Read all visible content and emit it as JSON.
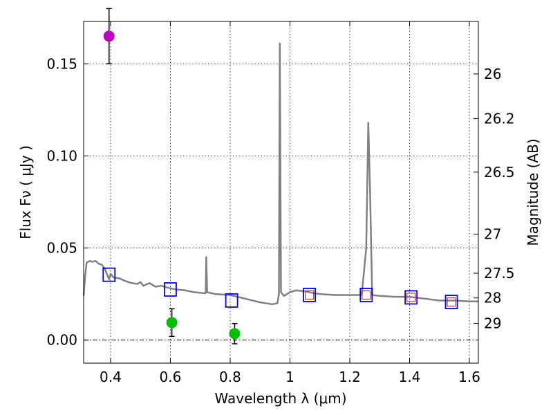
{
  "chart_data": {
    "type": "scatter",
    "xlabel": "Wavelength  λ (μm)",
    "ylabel_left": "Flux  Fν  ( μJy )",
    "ylabel_right": "Magnitude (AB)",
    "xlim": [
      0.31,
      1.63
    ],
    "ylim": [
      -0.0125,
      0.173
    ],
    "x_ticks": [
      {
        "value": 0.4,
        "label": "0.4"
      },
      {
        "value": 0.6,
        "label": "0.6"
      },
      {
        "value": 0.8,
        "label": "0.8"
      },
      {
        "value": 1.0,
        "label": "1"
      },
      {
        "value": 1.2,
        "label": "1.2"
      },
      {
        "value": 1.4,
        "label": "1.4"
      },
      {
        "value": 1.6,
        "label": "1.6"
      }
    ],
    "y_ticks": [
      {
        "value": 0.0,
        "label": "0.00"
      },
      {
        "value": 0.05,
        "label": "0.05"
      },
      {
        "value": 0.1,
        "label": "0.10"
      },
      {
        "value": 0.15,
        "label": "0.15"
      }
    ],
    "right_ticks": [
      {
        "flux": 0.1445,
        "label": "26"
      },
      {
        "flux": 0.1202,
        "label": "26.2"
      },
      {
        "flux": 0.0912,
        "label": "26.5"
      },
      {
        "flux": 0.0575,
        "label": "27"
      },
      {
        "flux": 0.0363,
        "label": "27.5"
      },
      {
        "flux": 0.0229,
        "label": "28"
      },
      {
        "flux": 0.0091,
        "label": "29"
      }
    ],
    "grid": true,
    "zero_line": true,
    "series": [
      {
        "name": "model-spectrum",
        "kind": "line",
        "color": "#808080",
        "points": [
          [
            0.31,
            0.024
          ],
          [
            0.315,
            0.035
          ],
          [
            0.32,
            0.042
          ],
          [
            0.33,
            0.043
          ],
          [
            0.34,
            0.0425
          ],
          [
            0.35,
            0.043
          ],
          [
            0.36,
            0.0415
          ],
          [
            0.37,
            0.041
          ],
          [
            0.38,
            0.039
          ],
          [
            0.39,
            0.035
          ],
          [
            0.395,
            0.033
          ],
          [
            0.4,
            0.036
          ],
          [
            0.41,
            0.034
          ],
          [
            0.43,
            0.0335
          ],
          [
            0.45,
            0.032
          ],
          [
            0.47,
            0.031
          ],
          [
            0.49,
            0.0305
          ],
          [
            0.5,
            0.0315
          ],
          [
            0.51,
            0.0295
          ],
          [
            0.53,
            0.031
          ],
          [
            0.55,
            0.029
          ],
          [
            0.57,
            0.0295
          ],
          [
            0.59,
            0.0285
          ],
          [
            0.62,
            0.0275
          ],
          [
            0.65,
            0.027
          ],
          [
            0.68,
            0.026
          ],
          [
            0.71,
            0.0255
          ],
          [
            0.718,
            0.0255
          ],
          [
            0.72,
            0.045
          ],
          [
            0.723,
            0.026
          ],
          [
            0.75,
            0.025
          ],
          [
            0.8,
            0.0245
          ],
          [
            0.85,
            0.0225
          ],
          [
            0.9,
            0.0205
          ],
          [
            0.94,
            0.0195
          ],
          [
            0.958,
            0.02
          ],
          [
            0.963,
            0.025
          ],
          [
            0.966,
            0.161
          ],
          [
            0.97,
            0.026
          ],
          [
            0.98,
            0.024
          ],
          [
            1.0,
            0.026
          ],
          [
            1.02,
            0.027
          ],
          [
            1.05,
            0.0265
          ],
          [
            1.08,
            0.0255
          ],
          [
            1.1,
            0.025
          ],
          [
            1.15,
            0.0245
          ],
          [
            1.2,
            0.0245
          ],
          [
            1.24,
            0.0245
          ],
          [
            1.255,
            0.05
          ],
          [
            1.262,
            0.118
          ],
          [
            1.268,
            0.08
          ],
          [
            1.275,
            0.0245
          ],
          [
            1.3,
            0.024
          ],
          [
            1.35,
            0.0235
          ],
          [
            1.4,
            0.0235
          ],
          [
            1.45,
            0.0225
          ],
          [
            1.5,
            0.0215
          ],
          [
            1.55,
            0.0215
          ],
          [
            1.6,
            0.021
          ],
          [
            1.63,
            0.021
          ]
        ]
      },
      {
        "name": "model-photometry",
        "kind": "square",
        "color": "#0000ff",
        "x": [
          0.395,
          0.6,
          0.805,
          1.065,
          1.255,
          1.405,
          1.54
        ],
        "y": [
          0.0355,
          0.0275,
          0.0215,
          0.0245,
          0.0245,
          0.0232,
          0.0207
        ]
      },
      {
        "name": "observed-photometry",
        "kind": "small-square",
        "color": "#cc3333",
        "x": [
          1.065,
          1.255,
          1.405,
          1.54
        ],
        "y": [
          0.0245,
          0.0245,
          0.0232,
          0.0207
        ]
      },
      {
        "name": "dropout-point",
        "kind": "circle",
        "color": "#bf00bf",
        "x": [
          0.395
        ],
        "y": [
          0.165
        ],
        "yerr": [
          0.015
        ]
      },
      {
        "name": "detections",
        "kind": "circle",
        "color": "#00bf00",
        "x": [
          0.605,
          0.815
        ],
        "y": [
          0.0095,
          0.0035
        ],
        "yerr": [
          0.0075,
          0.0055
        ]
      }
    ]
  }
}
